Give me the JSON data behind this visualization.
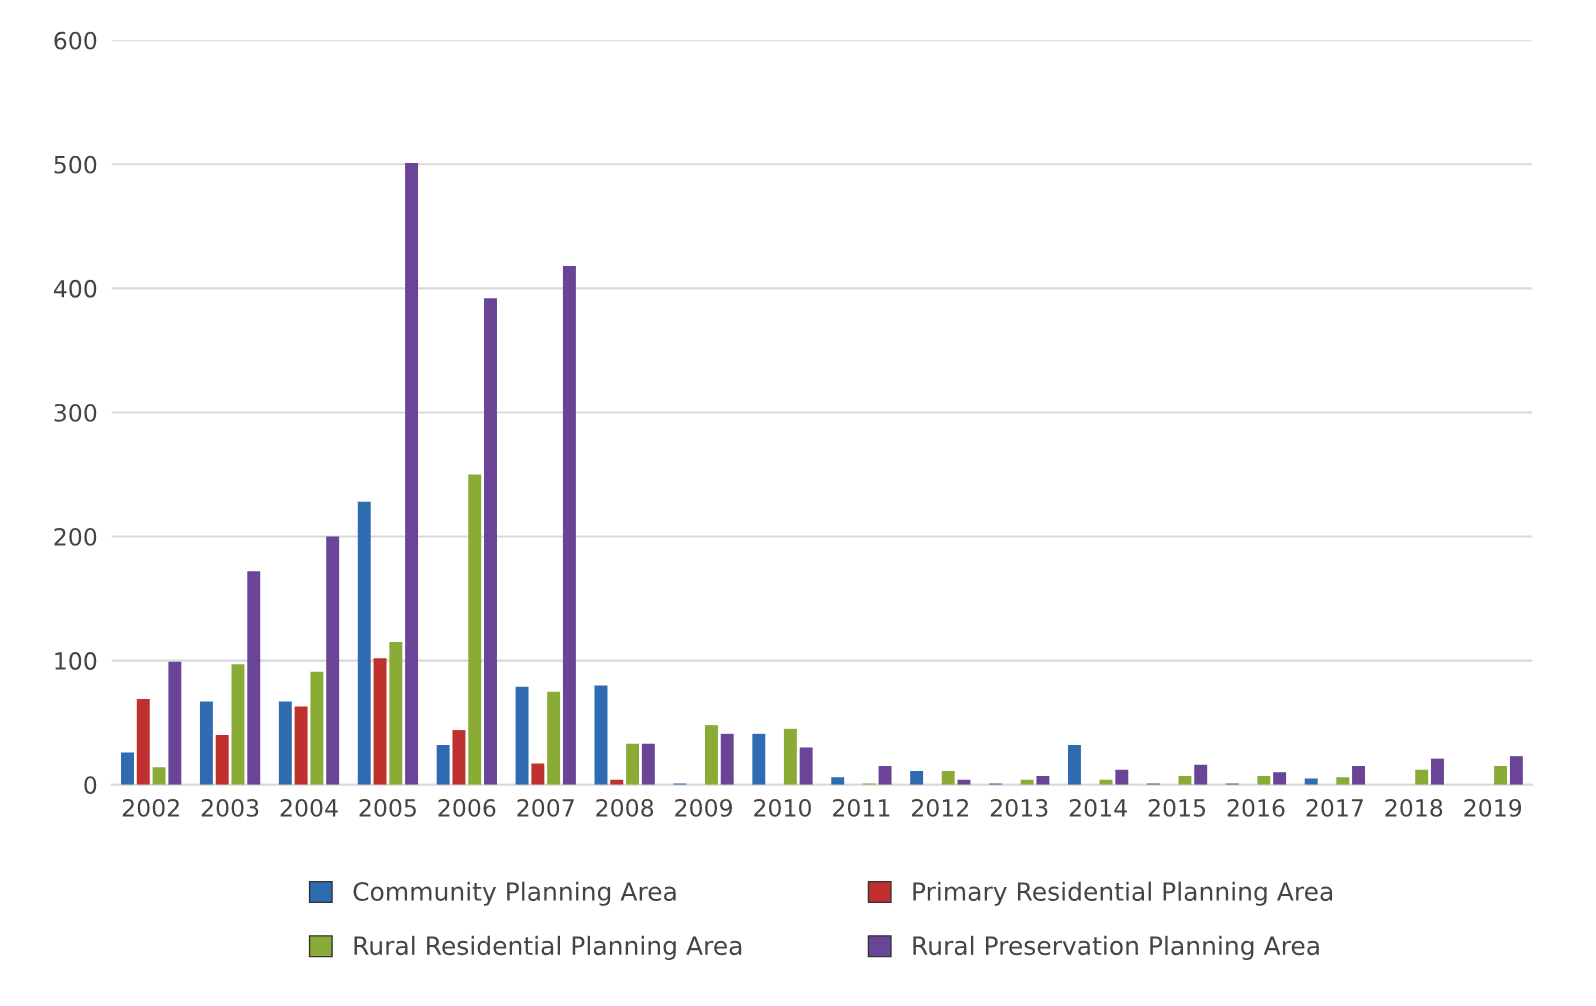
{
  "chart_data": {
    "type": "bar",
    "categories": [
      "2002",
      "2003",
      "2004",
      "2005",
      "2006",
      "2007",
      "2008",
      "2009",
      "2010",
      "2011",
      "2012",
      "2013",
      "2014",
      "2015",
      "2016",
      "2017",
      "2018",
      "2019"
    ],
    "series": [
      {
        "name": "Community Planning Area",
        "color": "#2e6bb0",
        "values": [
          26,
          67,
          67,
          228,
          32,
          79,
          80,
          1,
          41,
          6,
          11,
          1,
          32,
          1,
          1,
          5,
          null,
          null
        ]
      },
      {
        "name": "Primary Residential Planning Area",
        "color": "#c0302e",
        "values": [
          69,
          40,
          63,
          102,
          44,
          17,
          4,
          null,
          null,
          null,
          null,
          null,
          null,
          null,
          null,
          null,
          null,
          null
        ]
      },
      {
        "name": "Rural Residential Planning Area",
        "color": "#8aac36",
        "values": [
          14,
          97,
          91,
          115,
          250,
          75,
          33,
          48,
          45,
          1,
          11,
          4,
          4,
          7,
          7,
          6,
          12,
          15
        ]
      },
      {
        "name": "Rural Preservation Planning Area",
        "color": "#6a4496",
        "values": [
          99,
          172,
          200,
          501,
          392,
          418,
          33,
          41,
          30,
          15,
          4,
          7,
          12,
          16,
          10,
          15,
          21,
          23
        ]
      }
    ],
    "ylim": [
      0,
      600
    ],
    "yticks": [
      0,
      100,
      200,
      300,
      400,
      500,
      600
    ],
    "grid": "y",
    "legend": "bottom"
  }
}
